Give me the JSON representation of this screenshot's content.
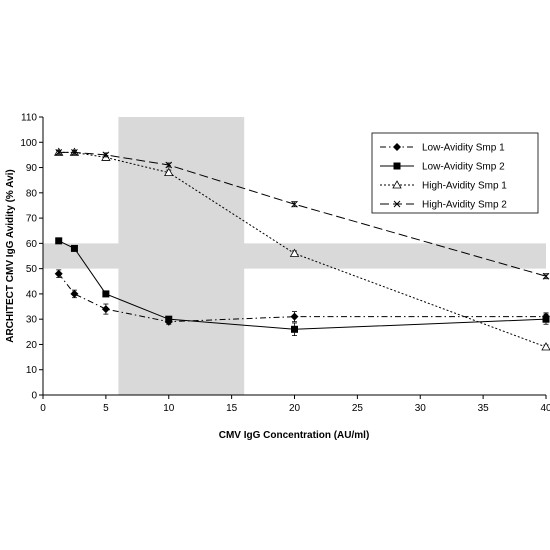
{
  "chart_data": {
    "type": "line",
    "title": "",
    "xlabel": "CMV IgG Concentration (AU/ml)",
    "ylabel": "ARCHITECT CMV IgG Avidity (% Avi)",
    "xlim": [
      0,
      40
    ],
    "ylim": [
      0,
      110
    ],
    "x_ticks": [
      0,
      5,
      10,
      15,
      20,
      25,
      30,
      35,
      40
    ],
    "y_ticks": [
      0,
      10,
      20,
      30,
      40,
      50,
      60,
      70,
      80,
      90,
      100,
      110
    ],
    "grid": false,
    "legend_position": "top-right",
    "shaded_regions": [
      {
        "axis": "x",
        "from": 6,
        "to": 16,
        "color": "#d9d9d9"
      },
      {
        "axis": "y",
        "from": 50,
        "to": 60,
        "color": "#d9d9d9"
      }
    ],
    "series": [
      {
        "name": "Low-Avidity Smp 1",
        "marker": "diamond",
        "line_style": "dash-dot",
        "color": "#000000",
        "x": [
          1.25,
          2.5,
          5,
          10,
          20,
          40
        ],
        "values": [
          48,
          40,
          34,
          29,
          31,
          31
        ],
        "errors": [
          1.5,
          1.5,
          2,
          1,
          2,
          1.5
        ]
      },
      {
        "name": "Low-Avidity Smp 2",
        "marker": "square",
        "line_style": "solid",
        "color": "#000000",
        "x": [
          1.25,
          2.5,
          5,
          10,
          20,
          40
        ],
        "values": [
          61,
          58,
          40,
          30,
          26,
          30
        ],
        "errors": [
          0.8,
          0.8,
          0.8,
          1,
          2.5,
          2
        ]
      },
      {
        "name": "High-Avidity Smp 1",
        "marker": "triangle",
        "line_style": "dotted",
        "color": "#000000",
        "x": [
          1.25,
          2.5,
          5,
          10,
          20,
          40
        ],
        "values": [
          96,
          96,
          94,
          88,
          56,
          19
        ],
        "errors": [
          0.8,
          0.8,
          0.8,
          1,
          1,
          0.8
        ]
      },
      {
        "name": "High-Avidity Smp 2",
        "marker": "x",
        "line_style": "long-dash",
        "color": "#000000",
        "x": [
          1.25,
          2.5,
          5,
          10,
          20,
          40
        ],
        "values": [
          96,
          96,
          95,
          91,
          75.5,
          47
        ],
        "errors": [
          0.8,
          0.8,
          0.8,
          0.8,
          1,
          1
        ]
      }
    ]
  }
}
